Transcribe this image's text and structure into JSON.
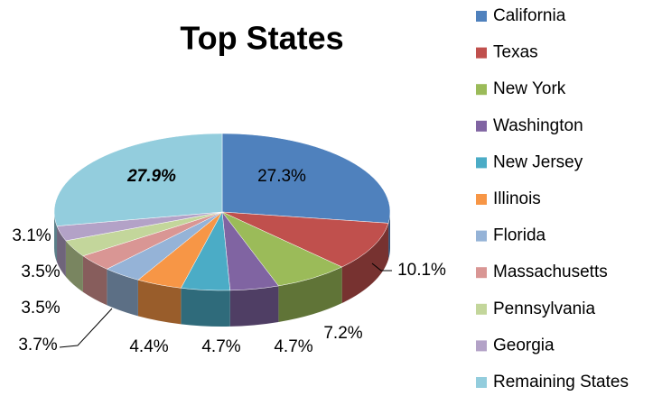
{
  "chart_data": {
    "type": "pie",
    "title": "Top States",
    "categories": [
      "California",
      "Texas",
      "New York",
      "Washington",
      "New Jersey",
      "Illinois",
      "Florida",
      "Massachusetts",
      "Pennsylvania",
      "Georgia",
      "Remaining States"
    ],
    "values": [
      27.3,
      10.1,
      7.2,
      4.7,
      4.7,
      4.4,
      3.7,
      3.5,
      3.5,
      3.1,
      27.9
    ],
    "value_labels": [
      "27.3%",
      "10.1%",
      "7.2%",
      "4.7%",
      "4.7%",
      "4.4%",
      "3.7%",
      "3.5%",
      "3.5%",
      "3.1%",
      "27.9%"
    ],
    "colors": [
      "#4f81bd",
      "#c0504d",
      "#9bbb59",
      "#8064a2",
      "#4bacc6",
      "#f79646",
      "#95b3d7",
      "#d99694",
      "#c3d69b",
      "#b3a2c7",
      "#93cddd"
    ],
    "legend": "right"
  }
}
